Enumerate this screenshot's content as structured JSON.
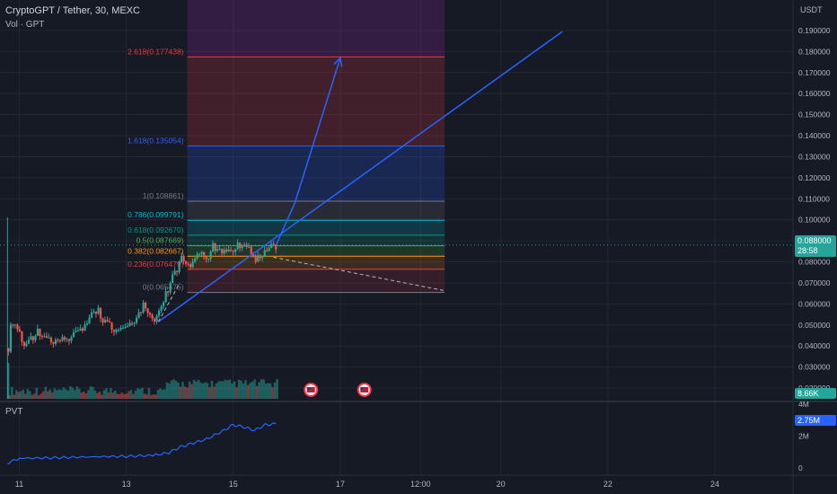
{
  "header": {
    "symbol_line": "CryptoGPT / Tether, 30, MEXC",
    "volume_label": "Vol · GPT",
    "currency": "USDT",
    "indicator_label": "PVT"
  },
  "last_price": {
    "value": "0.088000",
    "countdown": "28:58",
    "color": "#26a69a"
  },
  "volume_value": {
    "text": "8.66K",
    "color": "#26a69a"
  },
  "pvt_value": {
    "text": "2.75M",
    "color": "#2962ff"
  },
  "flag_icons": [
    "us-flag-icon",
    "us-flag-icon"
  ],
  "chart_data": {
    "type": "candlestick",
    "title": "CryptoGPT / Tether, 30, MEXC",
    "y_axis": {
      "label": "USDT",
      "ticks": [
        "0.190000",
        "0.180000",
        "0.170000",
        "0.160000",
        "0.150000",
        "0.140000",
        "0.130000",
        "0.120000",
        "0.110000",
        "0.100000",
        "0.090000",
        "0.080000",
        "0.070000",
        "0.060000",
        "0.050000",
        "0.040000",
        "0.030000",
        "0.020000"
      ],
      "range": [
        0.0149,
        0.2045
      ]
    },
    "x_axis": {
      "ticks": [
        {
          "label": "11",
          "t": 0.0
        },
        {
          "label": "13",
          "t": 2.0
        },
        {
          "label": "15",
          "t": 4.0
        },
        {
          "label": "17",
          "t": 6.0
        },
        {
          "label": "12:00",
          "t": 7.5
        },
        {
          "label": "20",
          "t": 9.0
        },
        {
          "label": "22",
          "t": 11.0
        },
        {
          "label": "24",
          "t": 13.0
        }
      ],
      "range": [
        -0.36,
        14.46
      ]
    },
    "price_series_waypoints": [
      [
        -0.22,
        0.039
      ],
      [
        -0.2,
        0.049
      ],
      [
        -0.1,
        0.052
      ],
      [
        0.0,
        0.045
      ],
      [
        0.1,
        0.04
      ],
      [
        0.2,
        0.043
      ],
      [
        0.35,
        0.047
      ],
      [
        0.5,
        0.042
      ],
      [
        0.7,
        0.043
      ],
      [
        0.9,
        0.044
      ],
      [
        1.1,
        0.046
      ],
      [
        1.25,
        0.05
      ],
      [
        1.35,
        0.055
      ],
      [
        1.45,
        0.058
      ],
      [
        1.55,
        0.052
      ],
      [
        1.65,
        0.05
      ],
      [
        1.8,
        0.048
      ],
      [
        2.0,
        0.048
      ],
      [
        2.2,
        0.054
      ],
      [
        2.3,
        0.06
      ],
      [
        2.4,
        0.057
      ],
      [
        2.5,
        0.052
      ],
      [
        2.6,
        0.057
      ],
      [
        2.7,
        0.063
      ],
      [
        2.8,
        0.07
      ],
      [
        2.9,
        0.075
      ],
      [
        3.0,
        0.082
      ],
      [
        3.1,
        0.08
      ],
      [
        3.2,
        0.078
      ],
      [
        3.3,
        0.083
      ],
      [
        3.4,
        0.086
      ],
      [
        3.5,
        0.082
      ],
      [
        3.6,
        0.088
      ],
      [
        3.7,
        0.085
      ],
      [
        3.8,
        0.086
      ],
      [
        3.9,
        0.084
      ],
      [
        4.0,
        0.087
      ],
      [
        4.15,
        0.089
      ],
      [
        4.3,
        0.085
      ],
      [
        4.4,
        0.08
      ],
      [
        4.5,
        0.083
      ],
      [
        4.6,
        0.084
      ],
      [
        4.7,
        0.087
      ],
      [
        4.8,
        0.088
      ]
    ],
    "volume_axis_ticks": [
      "4M"
    ],
    "pvt_axis_ticks": [
      "2M",
      "0"
    ],
    "fibonacci_levels": [
      {
        "label": "0(0.065475)",
        "ratio": 0,
        "value": 0.065475,
        "color": "#787b86",
        "band": "#f23645",
        "band_opacity": 0.14
      },
      {
        "label": "0.236(0.076479)",
        "ratio": 0.236,
        "value": 0.076479,
        "color": "#f23645",
        "band": "#ff9800",
        "band_opacity": 0.16
      },
      {
        "label": "0.382(0.082667)",
        "ratio": 0.382,
        "value": 0.082667,
        "color": "#ff9800",
        "band": "#4caf50",
        "band_opacity": 0.18
      },
      {
        "label": "0.5(0.087669)",
        "ratio": 0.5,
        "value": 0.087669,
        "color": "#4caf50",
        "band": "#089981",
        "band_opacity": 0.2
      },
      {
        "label": "0.618(0.092670)",
        "ratio": 0.618,
        "value": 0.09267,
        "color": "#089981",
        "band": "#00bcd4",
        "band_opacity": 0.18
      },
      {
        "label": "0.786(0.099791)",
        "ratio": 0.786,
        "value": 0.099791,
        "color": "#00bcd4",
        "band": "#787b86",
        "band_opacity": 0.18
      },
      {
        "label": "1(0.108861)",
        "ratio": 1,
        "value": 0.108861,
        "color": "#787b86",
        "band": "#2962ff",
        "band_opacity": 0.2
      },
      {
        "label": "1.618(0.135054)",
        "ratio": 1.618,
        "value": 0.135054,
        "color": "#2962ff",
        "band": "#f23645",
        "band_opacity": 0.2
      },
      {
        "label": "2.618(0.177438)",
        "ratio": 2.618,
        "value": 0.177438,
        "color": "#f23645",
        "band": "#9c27b0",
        "band_opacity": 0.22
      }
    ],
    "fibonacci_top_value": 0.2045,
    "fibonacci_x_range": [
      3.14,
      7.95
    ],
    "trendlines": [
      {
        "name": "ascending-support-trendline",
        "from": [
          2.6,
          0.0515
        ],
        "to": [
          10.15,
          0.1895
        ],
        "color": "#2962ff"
      },
      {
        "name": "projection-arrow-up",
        "points": [
          [
            4.8,
            0.088
          ],
          [
            5.15,
            0.108
          ],
          [
            6.0,
            0.177
          ]
        ],
        "color": "#2962ff"
      },
      {
        "name": "descending-dashed-line",
        "from": [
          4.75,
          0.0822
        ],
        "to": [
          7.95,
          0.0663
        ],
        "color": "#b2b5be",
        "dashed": true
      }
    ],
    "pvt_series_waypoints": [
      [
        -0.22,
        0.3
      ],
      [
        0.0,
        0.6
      ],
      [
        0.5,
        0.62
      ],
      [
        1.0,
        0.66
      ],
      [
        1.5,
        0.7
      ],
      [
        2.0,
        0.72
      ],
      [
        2.5,
        0.78
      ],
      [
        2.8,
        0.95
      ],
      [
        3.0,
        1.3
      ],
      [
        3.2,
        1.5
      ],
      [
        3.5,
        1.8
      ],
      [
        3.8,
        2.3
      ],
      [
        4.0,
        2.7
      ],
      [
        4.2,
        2.55
      ],
      [
        4.4,
        2.35
      ],
      [
        4.6,
        2.7
      ],
      [
        4.8,
        2.75
      ]
    ],
    "pvt_range": [
      -0.4,
      4.1
    ]
  }
}
